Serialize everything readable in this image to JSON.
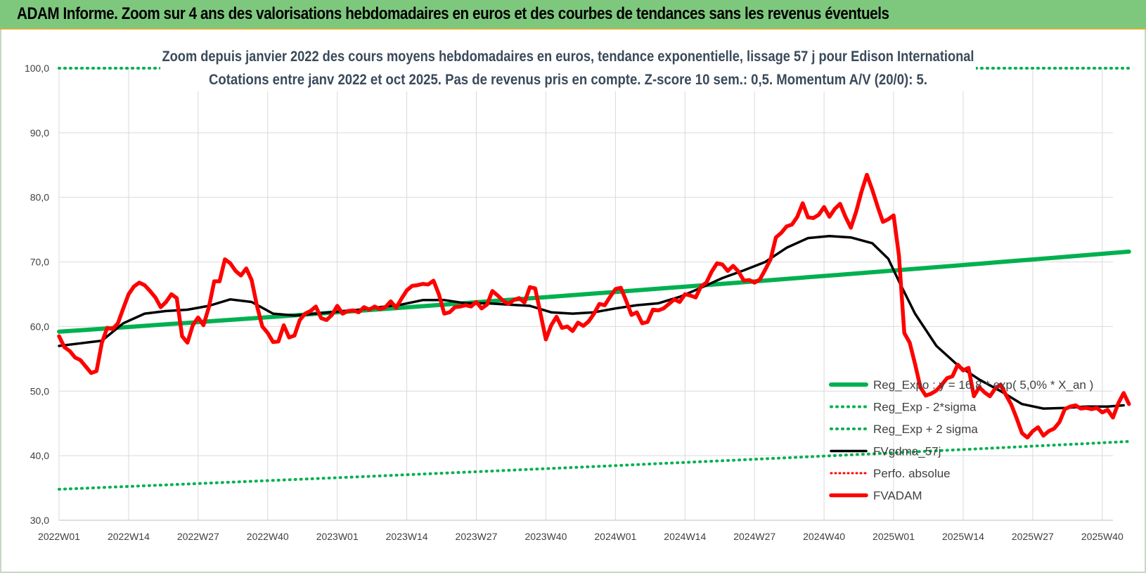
{
  "header": {
    "title": "ADAM Informe. Zoom sur 4 ans des valorisations hebdomadaires en euros et des courbes de tendances sans les revenus éventuels"
  },
  "colors": {
    "header_bg": "#7ec87e",
    "reg_expo": "#00b050",
    "fvgdma": "#000000",
    "fvadam": "#ff0000",
    "perfo": "#ff0000"
  },
  "chart_data": {
    "type": "line",
    "title": "Zoom depuis janvier 2022 des cours moyens hebdomadaires en euros, tendance exponentielle, lissage 57 j pour Edison International",
    "subtitle": "Cotations entre janv 2022 et oct 2025. Pas de revenus pris en compte. Z-score 10 sem.: 0,5. Momentum A/V (20/0): 5.",
    "ylim": [
      30,
      100
    ],
    "y_ticks": [
      "30,0",
      "40,0",
      "50,0",
      "60,0",
      "70,0",
      "80,0",
      "90,0",
      "100,0"
    ],
    "x_ticks": [
      "2022W01",
      "2022W14",
      "2022W27",
      "2022W40",
      "2023W01",
      "2023W14",
      "2023W27",
      "2023W40",
      "2024W01",
      "2024W14",
      "2024W27",
      "2024W40",
      "2025W01",
      "2025W14",
      "2025W27",
      "2025W40"
    ],
    "grid": true,
    "legend_position": "bottom-right",
    "series": [
      {
        "name": "Reg_Expo : y = 16,8 * exp( 5,0% * X_an )",
        "style": "solid-thick",
        "points": [
          [
            "2022W01",
            59.2
          ],
          [
            "2025W45",
            71.6
          ]
        ]
      },
      {
        "name": "Reg_Exp - 2*sigma",
        "style": "dotted",
        "points": [
          [
            "2022W01",
            34.8
          ],
          [
            "2025W45",
            42.2
          ]
        ]
      },
      {
        "name": "Reg_Exp + 2 sigma",
        "style": "dotted",
        "points": [
          [
            "2022W01",
            100.0
          ],
          [
            "2025W45",
            100.0
          ]
        ]
      },
      {
        "name": "FVgdma_57j",
        "style": "solid",
        "points": [
          [
            "2022W01",
            57.0
          ],
          [
            "2022W05",
            57.4
          ],
          [
            "2022W09",
            57.8
          ],
          [
            "2022W13",
            60.5
          ],
          [
            "2022W17",
            62.0
          ],
          [
            "2022W21",
            62.4
          ],
          [
            "2022W25",
            62.6
          ],
          [
            "2022W29",
            63.2
          ],
          [
            "2022W33",
            64.2
          ],
          [
            "2022W37",
            63.8
          ],
          [
            "2022W41",
            62.0
          ],
          [
            "2022W45",
            61.7
          ],
          [
            "2022W49",
            62.0
          ],
          [
            "2023W01",
            62.3
          ],
          [
            "2023W05",
            62.6
          ],
          [
            "2023W09",
            63.0
          ],
          [
            "2023W13",
            63.4
          ],
          [
            "2023W17",
            64.1
          ],
          [
            "2023W21",
            64.1
          ],
          [
            "2023W25",
            63.6
          ],
          [
            "2023W29",
            63.6
          ],
          [
            "2023W33",
            63.4
          ],
          [
            "2023W37",
            63.2
          ],
          [
            "2023W41",
            62.2
          ],
          [
            "2023W45",
            62.0
          ],
          [
            "2023W49",
            62.2
          ],
          [
            "2024W01",
            62.8
          ],
          [
            "2024W05",
            63.3
          ],
          [
            "2024W09",
            63.6
          ],
          [
            "2024W13",
            64.6
          ],
          [
            "2024W17",
            66.0
          ],
          [
            "2024W21",
            67.5
          ],
          [
            "2024W25",
            68.7
          ],
          [
            "2024W29",
            70.0
          ],
          [
            "2024W33",
            72.2
          ],
          [
            "2024W37",
            73.7
          ],
          [
            "2024W41",
            74.0
          ],
          [
            "2024W45",
            73.8
          ],
          [
            "2024W49",
            72.9
          ],
          [
            "2024W52",
            70.5
          ],
          [
            "2025W02",
            67.0
          ],
          [
            "2025W05",
            62.0
          ],
          [
            "2025W09",
            57.0
          ],
          [
            "2025W13",
            54.0
          ],
          [
            "2025W17",
            51.8
          ],
          [
            "2025W21",
            50.0
          ],
          [
            "2025W25",
            48.0
          ],
          [
            "2025W29",
            47.3
          ],
          [
            "2025W33",
            47.4
          ],
          [
            "2025W37",
            47.6
          ],
          [
            "2025W41",
            47.6
          ],
          [
            "2025W44",
            47.8
          ]
        ]
      },
      {
        "name": "Perfo. absolue",
        "style": "dotted-red",
        "points": []
      },
      {
        "name": "FVADAM",
        "style": "solid-thick",
        "points": [
          [
            "2022W01",
            58.5
          ],
          [
            "2022W02",
            56.8
          ],
          [
            "2022W03",
            56.2
          ],
          [
            "2022W04",
            55.2
          ],
          [
            "2022W05",
            54.8
          ],
          [
            "2022W06",
            53.8
          ],
          [
            "2022W07",
            52.8
          ],
          [
            "2022W08",
            53.1
          ],
          [
            "2022W09",
            57.5
          ],
          [
            "2022W10",
            59.8
          ],
          [
            "2022W11",
            59.6
          ],
          [
            "2022W12",
            60.5
          ],
          [
            "2022W13",
            62.8
          ],
          [
            "2022W14",
            65.0
          ],
          [
            "2022W15",
            66.2
          ],
          [
            "2022W16",
            66.8
          ],
          [
            "2022W17",
            66.4
          ],
          [
            "2022W18",
            65.5
          ],
          [
            "2022W19",
            64.5
          ],
          [
            "2022W20",
            63.0
          ],
          [
            "2022W21",
            63.8
          ],
          [
            "2022W22",
            65.0
          ],
          [
            "2022W23",
            64.4
          ],
          [
            "2022W24",
            58.5
          ],
          [
            "2022W25",
            57.5
          ],
          [
            "2022W26",
            60.2
          ],
          [
            "2022W27",
            61.4
          ],
          [
            "2022W28",
            60.2
          ],
          [
            "2022W29",
            63.0
          ],
          [
            "2022W30",
            67.0
          ],
          [
            "2022W31",
            67.0
          ],
          [
            "2022W32",
            70.4
          ],
          [
            "2022W33",
            69.8
          ],
          [
            "2022W34",
            68.6
          ],
          [
            "2022W35",
            67.9
          ],
          [
            "2022W36",
            69.0
          ],
          [
            "2022W37",
            67.2
          ],
          [
            "2022W38",
            63.2
          ],
          [
            "2022W39",
            60.0
          ],
          [
            "2022W40",
            59.0
          ],
          [
            "2022W41",
            57.6
          ],
          [
            "2022W42",
            57.7
          ],
          [
            "2022W43",
            60.2
          ],
          [
            "2022W44",
            58.3
          ],
          [
            "2022W45",
            58.6
          ],
          [
            "2022W46",
            61.0
          ],
          [
            "2022W47",
            62.0
          ],
          [
            "2022W48",
            62.4
          ],
          [
            "2022W49",
            63.1
          ],
          [
            "2022W50",
            61.3
          ],
          [
            "2022W51",
            61.0
          ],
          [
            "2022W52",
            61.8
          ],
          [
            "2023W01",
            63.2
          ],
          [
            "2023W02",
            62.0
          ],
          [
            "2023W03",
            62.4
          ],
          [
            "2023W04",
            62.5
          ],
          [
            "2023W05",
            62.2
          ],
          [
            "2023W06",
            63.0
          ],
          [
            "2023W07",
            62.6
          ],
          [
            "2023W08",
            63.1
          ],
          [
            "2023W09",
            62.7
          ],
          [
            "2023W10",
            63.0
          ],
          [
            "2023W11",
            63.9
          ],
          [
            "2023W12",
            62.9
          ],
          [
            "2023W13",
            64.3
          ],
          [
            "2023W14",
            65.6
          ],
          [
            "2023W15",
            66.3
          ],
          [
            "2023W16",
            66.4
          ],
          [
            "2023W17",
            66.6
          ],
          [
            "2023W18",
            66.5
          ],
          [
            "2023W19",
            67.1
          ],
          [
            "2023W20",
            65.0
          ],
          [
            "2023W21",
            62.0
          ],
          [
            "2023W22",
            62.2
          ],
          [
            "2023W23",
            63.0
          ],
          [
            "2023W24",
            63.1
          ],
          [
            "2023W25",
            63.3
          ],
          [
            "2023W26",
            63.1
          ],
          [
            "2023W27",
            63.8
          ],
          [
            "2023W28",
            62.8
          ],
          [
            "2023W29",
            63.4
          ],
          [
            "2023W30",
            65.5
          ],
          [
            "2023W31",
            64.8
          ],
          [
            "2023W32",
            64.0
          ],
          [
            "2023W33",
            63.5
          ],
          [
            "2023W34",
            64.1
          ],
          [
            "2023W35",
            64.4
          ],
          [
            "2023W36",
            63.7
          ],
          [
            "2023W37",
            66.1
          ],
          [
            "2023W38",
            65.9
          ],
          [
            "2023W39",
            62.0
          ],
          [
            "2023W40",
            58.0
          ],
          [
            "2023W41",
            60.2
          ],
          [
            "2023W42",
            61.5
          ],
          [
            "2023W43",
            59.8
          ],
          [
            "2023W44",
            60.0
          ],
          [
            "2023W45",
            59.3
          ],
          [
            "2023W46",
            60.6
          ],
          [
            "2023W47",
            60.1
          ],
          [
            "2023W48",
            60.8
          ],
          [
            "2023W49",
            62.0
          ],
          [
            "2023W50",
            63.5
          ],
          [
            "2023W51",
            63.3
          ],
          [
            "2023W52",
            64.6
          ],
          [
            "2024W01",
            65.8
          ],
          [
            "2024W02",
            66.0
          ],
          [
            "2024W03",
            64.0
          ],
          [
            "2024W04",
            61.8
          ],
          [
            "2024W05",
            62.2
          ],
          [
            "2024W06",
            60.5
          ],
          [
            "2024W07",
            60.7
          ],
          [
            "2024W08",
            62.6
          ],
          [
            "2024W09",
            62.5
          ],
          [
            "2024W10",
            62.8
          ],
          [
            "2024W11",
            63.5
          ],
          [
            "2024W12",
            64.2
          ],
          [
            "2024W13",
            63.8
          ],
          [
            "2024W14",
            65.0
          ],
          [
            "2024W15",
            64.8
          ],
          [
            "2024W16",
            64.5
          ],
          [
            "2024W17",
            66.2
          ],
          [
            "2024W18",
            66.8
          ],
          [
            "2024W19",
            68.5
          ],
          [
            "2024W20",
            69.8
          ],
          [
            "2024W21",
            69.6
          ],
          [
            "2024W22",
            68.6
          ],
          [
            "2024W23",
            69.4
          ],
          [
            "2024W24",
            68.5
          ],
          [
            "2024W25",
            67.1
          ],
          [
            "2024W26",
            67.2
          ],
          [
            "2024W27",
            66.8
          ],
          [
            "2024W28",
            67.3
          ],
          [
            "2024W29",
            68.8
          ],
          [
            "2024W30",
            70.4
          ],
          [
            "2024W31",
            73.8
          ],
          [
            "2024W32",
            74.5
          ],
          [
            "2024W33",
            75.5
          ],
          [
            "2024W34",
            75.8
          ],
          [
            "2024W35",
            77.0
          ],
          [
            "2024W36",
            79.1
          ],
          [
            "2024W37",
            76.9
          ],
          [
            "2024W38",
            76.8
          ],
          [
            "2024W39",
            77.3
          ],
          [
            "2024W40",
            78.5
          ],
          [
            "2024W41",
            77.0
          ],
          [
            "2024W42",
            78.2
          ],
          [
            "2024W43",
            79.0
          ],
          [
            "2024W44",
            77.0
          ],
          [
            "2024W45",
            75.3
          ],
          [
            "2024W46",
            77.8
          ],
          [
            "2024W47",
            80.9
          ],
          [
            "2024W48",
            83.5
          ],
          [
            "2024W49",
            81.2
          ],
          [
            "2024W50",
            78.6
          ],
          [
            "2024W51",
            76.2
          ],
          [
            "2024W52",
            76.6
          ],
          [
            "2025W01",
            77.2
          ],
          [
            "2025W02",
            71.0
          ],
          [
            "2025W03",
            59.0
          ],
          [
            "2025W04",
            57.5
          ],
          [
            "2025W05",
            54.2
          ],
          [
            "2025W06",
            50.6
          ],
          [
            "2025W07",
            49.3
          ],
          [
            "2025W08",
            49.6
          ],
          [
            "2025W09",
            50.1
          ],
          [
            "2025W10",
            51.0
          ],
          [
            "2025W11",
            52.0
          ],
          [
            "2025W12",
            52.3
          ],
          [
            "2025W13",
            54.1
          ],
          [
            "2025W14",
            53.2
          ],
          [
            "2025W15",
            53.6
          ],
          [
            "2025W16",
            49.2
          ],
          [
            "2025W17",
            50.6
          ],
          [
            "2025W18",
            49.8
          ],
          [
            "2025W19",
            49.2
          ],
          [
            "2025W20",
            50.4
          ],
          [
            "2025W21",
            51.0
          ],
          [
            "2025W22",
            49.4
          ],
          [
            "2025W23",
            47.9
          ],
          [
            "2025W24",
            45.8
          ],
          [
            "2025W25",
            43.5
          ],
          [
            "2025W26",
            42.8
          ],
          [
            "2025W27",
            43.8
          ],
          [
            "2025W28",
            44.4
          ],
          [
            "2025W29",
            43.1
          ],
          [
            "2025W30",
            43.8
          ],
          [
            "2025W31",
            44.2
          ],
          [
            "2025W32",
            45.2
          ],
          [
            "2025W33",
            47.2
          ],
          [
            "2025W34",
            47.6
          ],
          [
            "2025W35",
            47.8
          ],
          [
            "2025W36",
            47.3
          ],
          [
            "2025W37",
            47.4
          ],
          [
            "2025W38",
            47.2
          ],
          [
            "2025W39",
            47.4
          ],
          [
            "2025W40",
            46.7
          ],
          [
            "2025W41",
            47.1
          ],
          [
            "2025W42",
            45.9
          ],
          [
            "2025W43",
            48.1
          ],
          [
            "2025W44",
            49.7
          ],
          [
            "2025W45",
            48.0
          ]
        ]
      }
    ]
  }
}
